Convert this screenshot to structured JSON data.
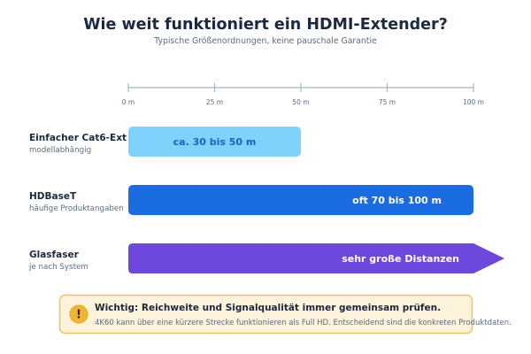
{
  "chart_data": {
    "type": "bar",
    "orientation": "horizontal",
    "title": "Wie weit funktioniert ein HDMI-Extender?",
    "subtitle": "Typische Größenordnungen, keine pauschale Garantie",
    "xlim": [
      0,
      100
    ],
    "x_ticks": [
      0,
      25,
      50,
      75,
      100
    ],
    "x_tick_labels": [
      "0 m",
      "25 m",
      "50 m",
      "75 m",
      "100 m"
    ],
    "x_axis_position": "top",
    "grid": false,
    "legend": "none",
    "categories": [
      "Einfacher Cat6-Ext",
      "HDBaseT",
      "Glasfaser"
    ],
    "category_notes": [
      "modellabhängig",
      "häufige Produktangaben",
      "je nach System"
    ],
    "bar_start": [
      0,
      0,
      0
    ],
    "values": [
      50,
      100,
      100
    ],
    "continues_beyond_axis": [
      false,
      false,
      true
    ],
    "data_labels": [
      "ca. 30 bis 50 m",
      "oft 70 bis 100 m",
      "sehr große Distanzen"
    ],
    "data_label_position": [
      "center",
      "inside-end",
      "inside-end"
    ],
    "bar_colors": [
      "#7fd2fc",
      "#1b6ce1",
      "#6e48dd"
    ],
    "data_label_colors": [
      "#1d5fc6",
      "#ffffff",
      "#ffffff"
    ]
  },
  "note": {
    "icon": "exclamation-icon",
    "icon_glyph": "!",
    "title": "Wichtig: Reichweite und Signalqualität immer gemeinsam prüfen.",
    "text": "4K60 kann über eine kürzere Strecke funktionieren als Full HD. Entscheidend sind die konkreten Produktdaten."
  },
  "colors": {
    "background": "#ffffff",
    "title": "#1c2942",
    "text": "#1c2942",
    "muted": "#5c6b83",
    "axis": "#a8b4c5",
    "note_background": "#fdf2da",
    "note_border": "#efc467",
    "note_icon": "#f2b531",
    "note_icon_glyph": "#2d2410"
  }
}
